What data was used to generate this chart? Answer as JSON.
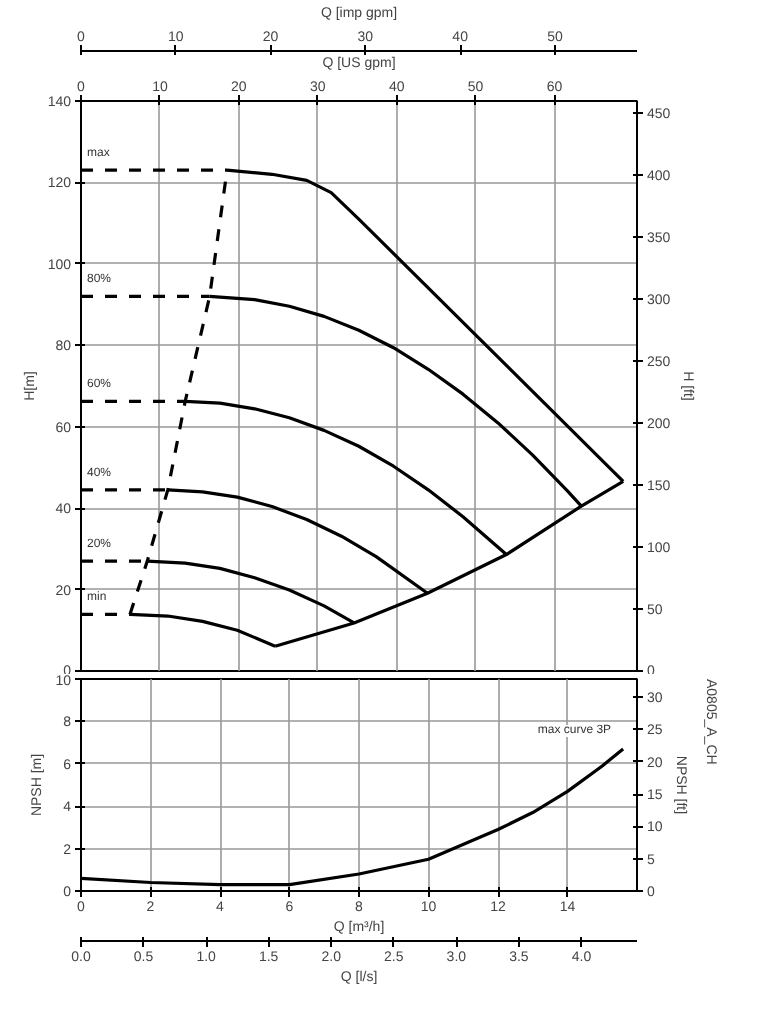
{
  "chart_data": [
    {
      "type": "line",
      "xlim": [
        0,
        70.45
      ],
      "xticks": [
        0,
        10,
        20,
        30,
        40,
        50,
        60
      ],
      "xlabel": "Q [US gpm]",
      "x2lim": [
        0,
        58.66
      ],
      "x2ticks": [
        0,
        10,
        20,
        30,
        40,
        50
      ],
      "x2label": "Q [imp gpm]",
      "ylim": [
        0,
        140
      ],
      "yticks": [
        0,
        20,
        40,
        60,
        80,
        100,
        120,
        140
      ],
      "ylabel": "H[m]",
      "y2label": "H [ft]",
      "y2lim": [
        0,
        459.3
      ],
      "y2ticks": [
        0,
        50,
        100,
        150,
        200,
        250,
        300,
        350,
        400,
        450
      ],
      "grid": true,
      "series": [
        {
          "color": "#000000",
          "line_style": "dashed",
          "x": [
            0,
            18.5
          ],
          "values": [
            123,
            123
          ]
        },
        {
          "color": "#000000",
          "line_style": "solid",
          "x": [
            18.5,
            24.2,
            28.6,
            31.7,
            35.2,
            68.7
          ],
          "values": [
            123,
            122,
            120.5,
            117.5,
            111,
            46.6
          ]
        },
        {
          "color": "#000000",
          "line_style": "dashed",
          "x": [
            0,
            16.3
          ],
          "values": [
            92,
            92
          ]
        },
        {
          "color": "#000000",
          "line_style": "solid",
          "x": [
            16.3,
            22.0,
            26.4,
            30.8,
            35.2,
            39.6,
            44.0,
            48.4,
            52.8,
            57.2,
            61.6,
            63.4
          ],
          "values": [
            92,
            91.2,
            89.6,
            87.1,
            83.7,
            79.4,
            74.1,
            68,
            61,
            53.1,
            44.3,
            40.5
          ]
        },
        {
          "color": "#000000",
          "line_style": "dashed",
          "x": [
            0,
            13.2
          ],
          "values": [
            66.2,
            66.2
          ]
        },
        {
          "color": "#000000",
          "line_style": "solid",
          "x": [
            13.2,
            17.6,
            22.0,
            26.4,
            30.8,
            35.2,
            39.6,
            44.0,
            48.4,
            53.9
          ],
          "values": [
            66.2,
            65.8,
            64.4,
            62.2,
            59.1,
            55.2,
            50.3,
            44.5,
            37.9,
            28.6
          ]
        },
        {
          "color": "#000000",
          "line_style": "dashed",
          "x": [
            0,
            11.0
          ],
          "values": [
            44.5,
            44.5
          ]
        },
        {
          "color": "#000000",
          "line_style": "solid",
          "x": [
            11.0,
            15.4,
            19.8,
            24.2,
            28.6,
            33.0,
            37.4,
            43.9
          ],
          "values": [
            44.5,
            44,
            42.7,
            40.4,
            37.2,
            33.1,
            28.1,
            19.1
          ]
        },
        {
          "color": "#000000",
          "line_style": "dashed",
          "x": [
            0,
            8.4
          ],
          "values": [
            27,
            27
          ]
        },
        {
          "color": "#000000",
          "line_style": "solid",
          "x": [
            8.4,
            13.2,
            17.6,
            22.0,
            26.4,
            30.8,
            34.6
          ],
          "values": [
            27,
            26.5,
            25.2,
            22.9,
            19.9,
            16,
            11.8
          ]
        },
        {
          "color": "#000000",
          "line_style": "dashed",
          "x": [
            0,
            6.2
          ],
          "values": [
            13.9,
            13.9
          ]
        },
        {
          "color": "#000000",
          "line_style": "solid",
          "x": [
            6.2,
            11.0,
            15.4,
            19.8,
            24.6
          ],
          "values": [
            13.9,
            13.5,
            12.2,
            10,
            6.1
          ]
        },
        {
          "color": "#000000",
          "line_style": "solid",
          "x": [
            24.6,
            34.6,
            43.9,
            53.9,
            63.4,
            68.7
          ],
          "values": [
            6.1,
            11.8,
            19.1,
            28.6,
            40.5,
            46.6
          ]
        },
        {
          "color": "#000000",
          "line_style": "dashed",
          "x": [
            6.2,
            8.4,
            11.0,
            13.2,
            16.3,
            18.5
          ],
          "values": [
            13.9,
            27,
            44.5,
            66.2,
            92,
            123
          ]
        }
      ],
      "annotations": [
        "max",
        "80%",
        "60%",
        "40%",
        "20%",
        "min"
      ]
    },
    {
      "type": "line",
      "xlim": [
        0,
        16
      ],
      "xticks": [
        0,
        2,
        4,
        6,
        8,
        10,
        12,
        14
      ],
      "xlabel": "Q [m³/h]",
      "ylim": [
        0,
        10
      ],
      "yticks": [
        0,
        2,
        4,
        6,
        8,
        10
      ],
      "ylabel": "NPSH [m]",
      "y2label": "NPSH [ft]",
      "y2lim": [
        0,
        32.8
      ],
      "y2ticks": [
        0,
        5,
        10,
        15,
        20,
        25,
        30
      ],
      "x2lim": [
        0,
        4.444
      ],
      "x2ticks": [
        {
          "value": 0,
          "label": "0.0"
        },
        0.5,
        {
          "value": 1,
          "label": "1.0"
        },
        1.5,
        {
          "value": 2,
          "label": "2.0"
        },
        2.5,
        {
          "value": 3,
          "label": "3.0"
        },
        3.5,
        {
          "value": 4,
          "label": "4.0"
        }
      ],
      "x2label": "Q [l/s]",
      "grid": true,
      "series": [
        {
          "color": "#000000",
          "line_style": "solid",
          "x": [
            0,
            2,
            4,
            6,
            8,
            10,
            12,
            13,
            14,
            15,
            15.6
          ],
          "values": [
            0.6,
            0.4,
            0.3,
            0.3,
            0.8,
            1.5,
            2.9,
            3.7,
            4.7,
            5.9,
            6.7
          ]
        }
      ],
      "annotations": [
        "max curve 3P",
        "A0805_A_CH"
      ]
    }
  ]
}
